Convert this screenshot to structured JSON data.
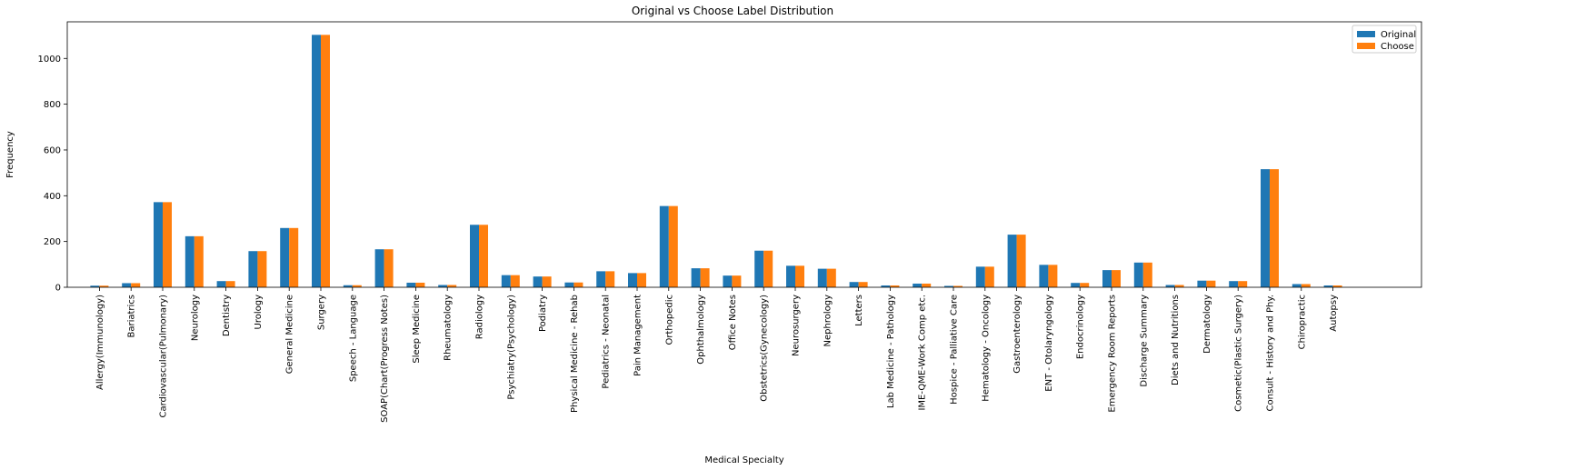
{
  "chart_data": {
    "type": "bar",
    "title": "Original vs Choose Label Distribution",
    "xlabel": "Medical Specialty",
    "ylabel": "Frequency",
    "ylim": [
      0,
      1160
    ],
    "yticks": [
      0,
      200,
      400,
      600,
      800,
      1000
    ],
    "grid": false,
    "legend_position": "top-right",
    "categories": [
      "Allergy(Immunology)",
      "Bariatrics",
      "Cardiovascular(Pulmonary)",
      "Neurology",
      "Dentistry",
      "Urology",
      "General Medicine",
      "Surgery",
      "Speech - Language",
      "SOAP(Chart(Progress Notes)",
      "Sleep Medicine",
      "Rheumatology",
      "Radiology",
      "Psychiatry(Psychology)",
      "Podiatry",
      "Physical Medicine - Rehab",
      "Pediatrics - Neonatal",
      "Pain Management",
      "Orthopedic",
      "Ophthalmology",
      "Office Notes",
      "Obstetrics(Gynecology)",
      "Neurosurgery",
      "Nephrology",
      "Letters",
      "Lab Medicine - Pathology",
      "IME-QME-Work Comp etc.",
      "Hospice - Palliative Care",
      "Hematology - Oncology",
      "Gastroenterology",
      "ENT - Otolaryngology",
      "Endocrinology",
      "Emergency Room Reports",
      "Discharge Summary",
      "Diets and Nutritions",
      "Dermatology",
      "Cosmetic(Plastic Surgery)",
      "Consult - History and Phy.",
      "Chiropractic",
      "Autopsy"
    ],
    "series": [
      {
        "name": "Original",
        "color": "#1f77b4",
        "values": [
          7,
          18,
          372,
          223,
          27,
          158,
          259,
          1103,
          9,
          166,
          20,
          10,
          273,
          53,
          47,
          21,
          70,
          62,
          355,
          83,
          51,
          160,
          94,
          81,
          23,
          8,
          16,
          6,
          90,
          230,
          98,
          19,
          75,
          108,
          10,
          29,
          27,
          516,
          14,
          8
        ]
      },
      {
        "name": "Choose",
        "color": "#ff7f0e",
        "values": [
          7,
          18,
          372,
          223,
          27,
          158,
          259,
          1103,
          9,
          166,
          20,
          10,
          273,
          53,
          47,
          21,
          70,
          62,
          355,
          83,
          51,
          160,
          94,
          81,
          23,
          8,
          16,
          6,
          90,
          230,
          98,
          19,
          75,
          108,
          10,
          29,
          27,
          516,
          14,
          8
        ]
      }
    ]
  }
}
